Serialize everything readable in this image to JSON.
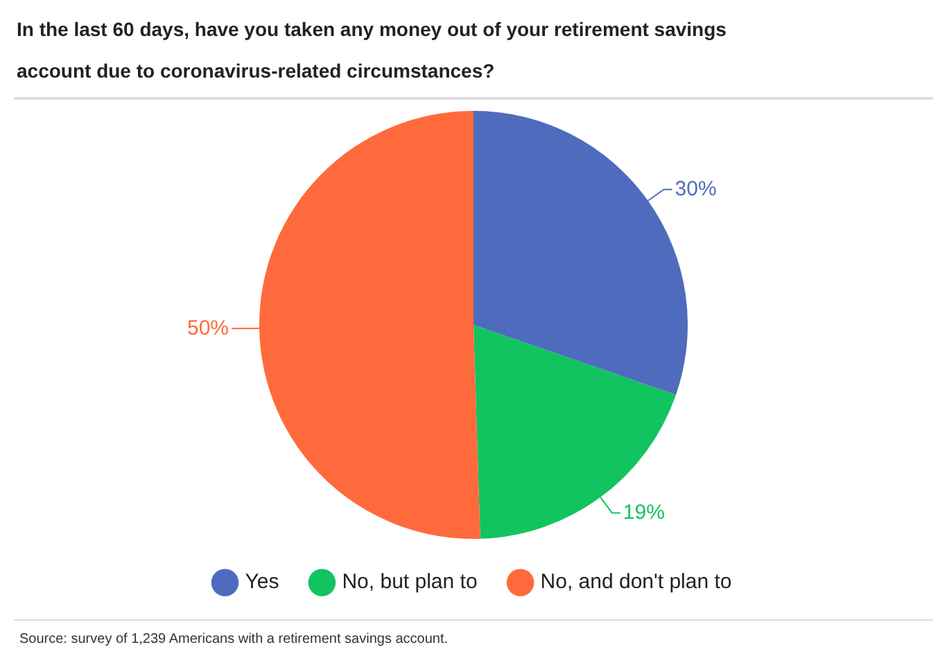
{
  "chart_data": {
    "type": "pie",
    "title": "In the last 60 days, have you taken any money out of your retirement savings account due to coronavirus-related circumstances?",
    "categories": [
      "Yes",
      "No, but plan to",
      "No, and don't plan to"
    ],
    "values": [
      30,
      19,
      50
    ],
    "colors": [
      "#4f6bbd",
      "#12c45f",
      "#ff6a3c"
    ],
    "value_labels": [
      "30%",
      "19%",
      "50%"
    ],
    "legend": "bottom",
    "annotations": [
      "Source: survey of 1,239 Americans with a retirement savings account."
    ]
  }
}
